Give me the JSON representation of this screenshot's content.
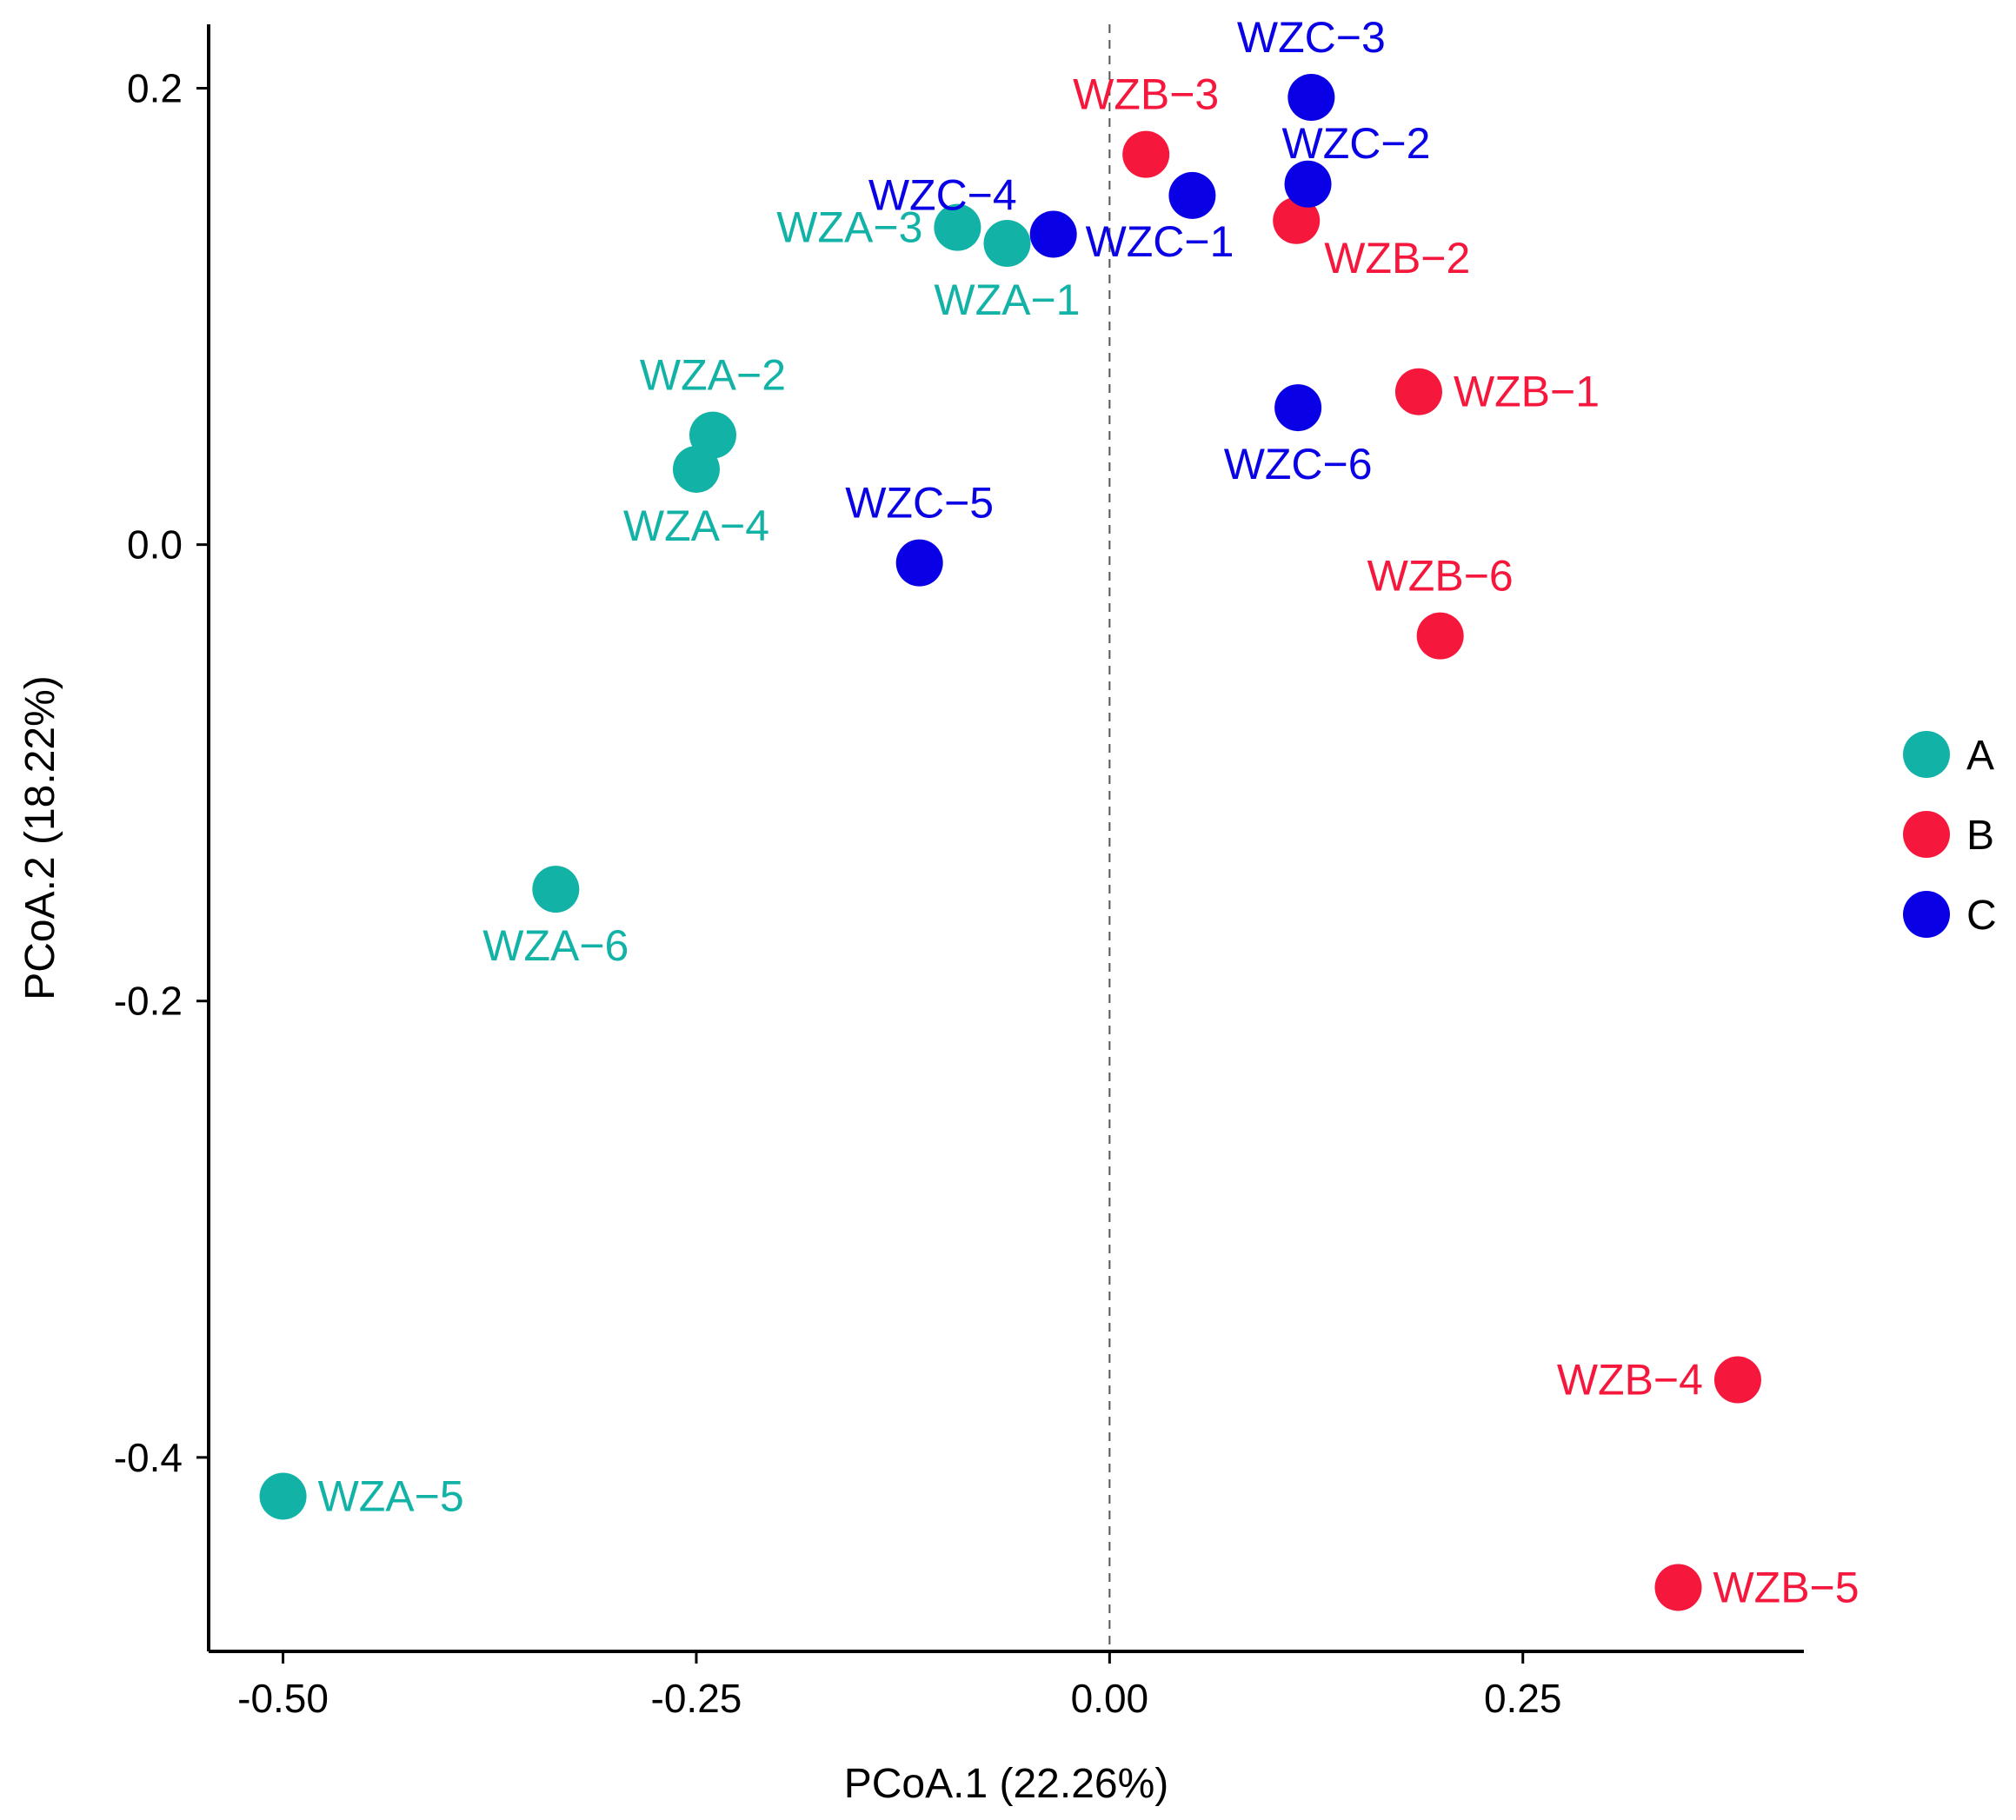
{
  "chart_data": {
    "type": "scatter",
    "title": "",
    "xlabel": "PCoA.1 (22.26%)",
    "ylabel": "PCoA.2 (18.22%)",
    "xlim": [
      -0.545,
      0.42
    ],
    "ylim": [
      -0.485,
      0.228
    ],
    "xticks": [
      -0.5,
      -0.25,
      0.0,
      0.25
    ],
    "xtick_labels": [
      "-0.50",
      "-0.25",
      "0.00",
      "0.25"
    ],
    "yticks": [
      0.2,
      0.0,
      -0.2,
      -0.4
    ],
    "ytick_labels": [
      "0.2",
      "0.0",
      "-0.2",
      "-0.4"
    ],
    "vline_x": 0.0,
    "grid": false,
    "legend": {
      "position": "right",
      "entries": [
        {
          "label": "A",
          "color": "#12B3A6"
        },
        {
          "label": "B",
          "color": "#F5183C"
        },
        {
          "label": "C",
          "color": "#0A00E6"
        }
      ]
    },
    "points": [
      {
        "label": "WZA-1",
        "group": "A",
        "x": -0.062,
        "y": 0.132,
        "label_pos": "below"
      },
      {
        "label": "WZA-2",
        "group": "A",
        "x": -0.24,
        "y": 0.048,
        "label_pos": "above"
      },
      {
        "label": "WZA-3",
        "group": "A",
        "x": -0.092,
        "y": 0.139,
        "label_pos": "left"
      },
      {
        "label": "WZA-4",
        "group": "A",
        "x": -0.25,
        "y": 0.033,
        "label_pos": "below"
      },
      {
        "label": "WZA-5",
        "group": "A",
        "x": -0.5,
        "y": -0.417,
        "label_pos": "right"
      },
      {
        "label": "WZA-6",
        "group": "A",
        "x": -0.335,
        "y": -0.151,
        "label_pos": "below"
      },
      {
        "label": "WZB-1",
        "group": "B",
        "x": 0.187,
        "y": 0.067,
        "label_pos": "right"
      },
      {
        "label": "WZB-2",
        "group": "B",
        "x": 0.113,
        "y": 0.142,
        "label_pos": "below-right"
      },
      {
        "label": "WZB-3",
        "group": "B",
        "x": 0.022,
        "y": 0.171,
        "label_pos": "above"
      },
      {
        "label": "WZB-4",
        "group": "B",
        "x": 0.38,
        "y": -0.366,
        "label_pos": "left"
      },
      {
        "label": "WZB-5",
        "group": "B",
        "x": 0.344,
        "y": -0.457,
        "label_pos": "right"
      },
      {
        "label": "WZB-6",
        "group": "B",
        "x": 0.2,
        "y": -0.04,
        "label_pos": "above"
      },
      {
        "label": "WZC-1",
        "group": "C",
        "x": 0.05,
        "y": 0.153,
        "label_pos": "below-left"
      },
      {
        "label": "WZC-2",
        "group": "C",
        "x": 0.12,
        "y": 0.158,
        "label_pos": "above-right"
      },
      {
        "label": "WZC-3",
        "group": "C",
        "x": 0.122,
        "y": 0.196,
        "label_pos": "above"
      },
      {
        "label": "WZC-4",
        "group": "C",
        "x": -0.034,
        "y": 0.136,
        "label_pos": "above-left"
      },
      {
        "label": "WZC-5",
        "group": "C",
        "x": -0.115,
        "y": -0.008,
        "label_pos": "above"
      },
      {
        "label": "WZC-6",
        "group": "C",
        "x": 0.114,
        "y": 0.06,
        "label_pos": "below"
      }
    ]
  }
}
